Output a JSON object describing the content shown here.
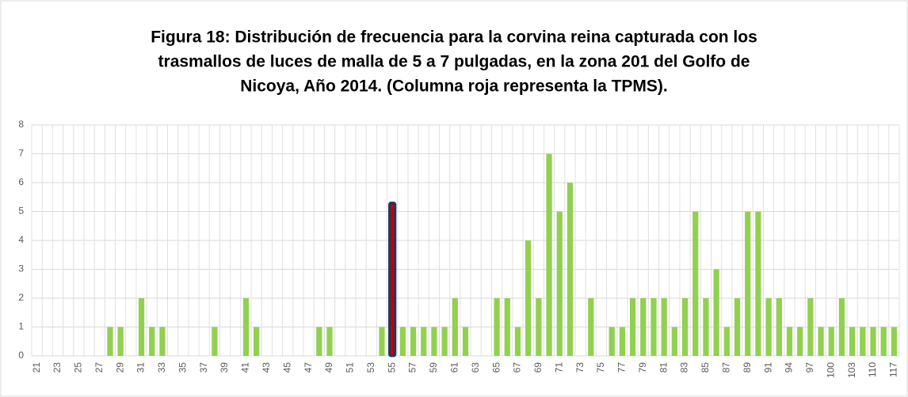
{
  "chart_data": {
    "type": "bar",
    "title_lines": [
      "Figura 18: Distribución de frecuencia para la corvina reina capturada con los",
      "trasmallos de luces de malla de 5 a 7 pulgadas, en la zona 201 del Golfo de",
      "Nicoya, Año 2014. (Columna roja representa la TPMS)."
    ],
    "categories": [
      21,
      null,
      23,
      null,
      25,
      null,
      27,
      null,
      29,
      null,
      31,
      null,
      33,
      null,
      35,
      null,
      37,
      null,
      39,
      null,
      41,
      null,
      43,
      null,
      45,
      null,
      47,
      null,
      49,
      null,
      51,
      null,
      53,
      null,
      55,
      null,
      57,
      null,
      59,
      null,
      61,
      null,
      63,
      null,
      65,
      null,
      67,
      null,
      69,
      null,
      71,
      null,
      73,
      null,
      75,
      null,
      77,
      null,
      79,
      null,
      81,
      null,
      83,
      null,
      85,
      null,
      87,
      null,
      89,
      null,
      91,
      null,
      94,
      null,
      97,
      null,
      100,
      null,
      103,
      null,
      110,
      null,
      117
    ],
    "values": [
      0,
      0,
      0,
      0,
      0,
      0,
      0,
      1,
      1,
      0,
      2,
      1,
      1,
      0,
      0,
      0,
      0,
      1,
      0,
      0,
      2,
      1,
      0,
      0,
      0,
      0,
      0,
      1,
      1,
      0,
      0,
      0,
      0,
      1,
      5.3,
      1,
      1,
      1,
      1,
      1,
      2,
      1,
      0,
      0,
      2,
      2,
      1,
      4,
      2,
      7,
      5,
      6,
      0,
      2,
      0,
      1,
      1,
      2,
      2,
      2,
      2,
      1,
      2,
      5,
      2,
      3,
      1,
      2,
      5,
      5,
      2,
      2,
      1,
      1,
      2,
      1,
      1,
      2,
      1,
      1,
      1,
      1,
      1
    ],
    "color": "#92d050",
    "highlight": {
      "category": 55,
      "color": "#c00000",
      "edgecolor": "#1f3864"
    },
    "ylim": [
      0,
      8
    ],
    "yticks": [
      0,
      1,
      2,
      3,
      4,
      5,
      6,
      7,
      8
    ],
    "grid": true
  }
}
